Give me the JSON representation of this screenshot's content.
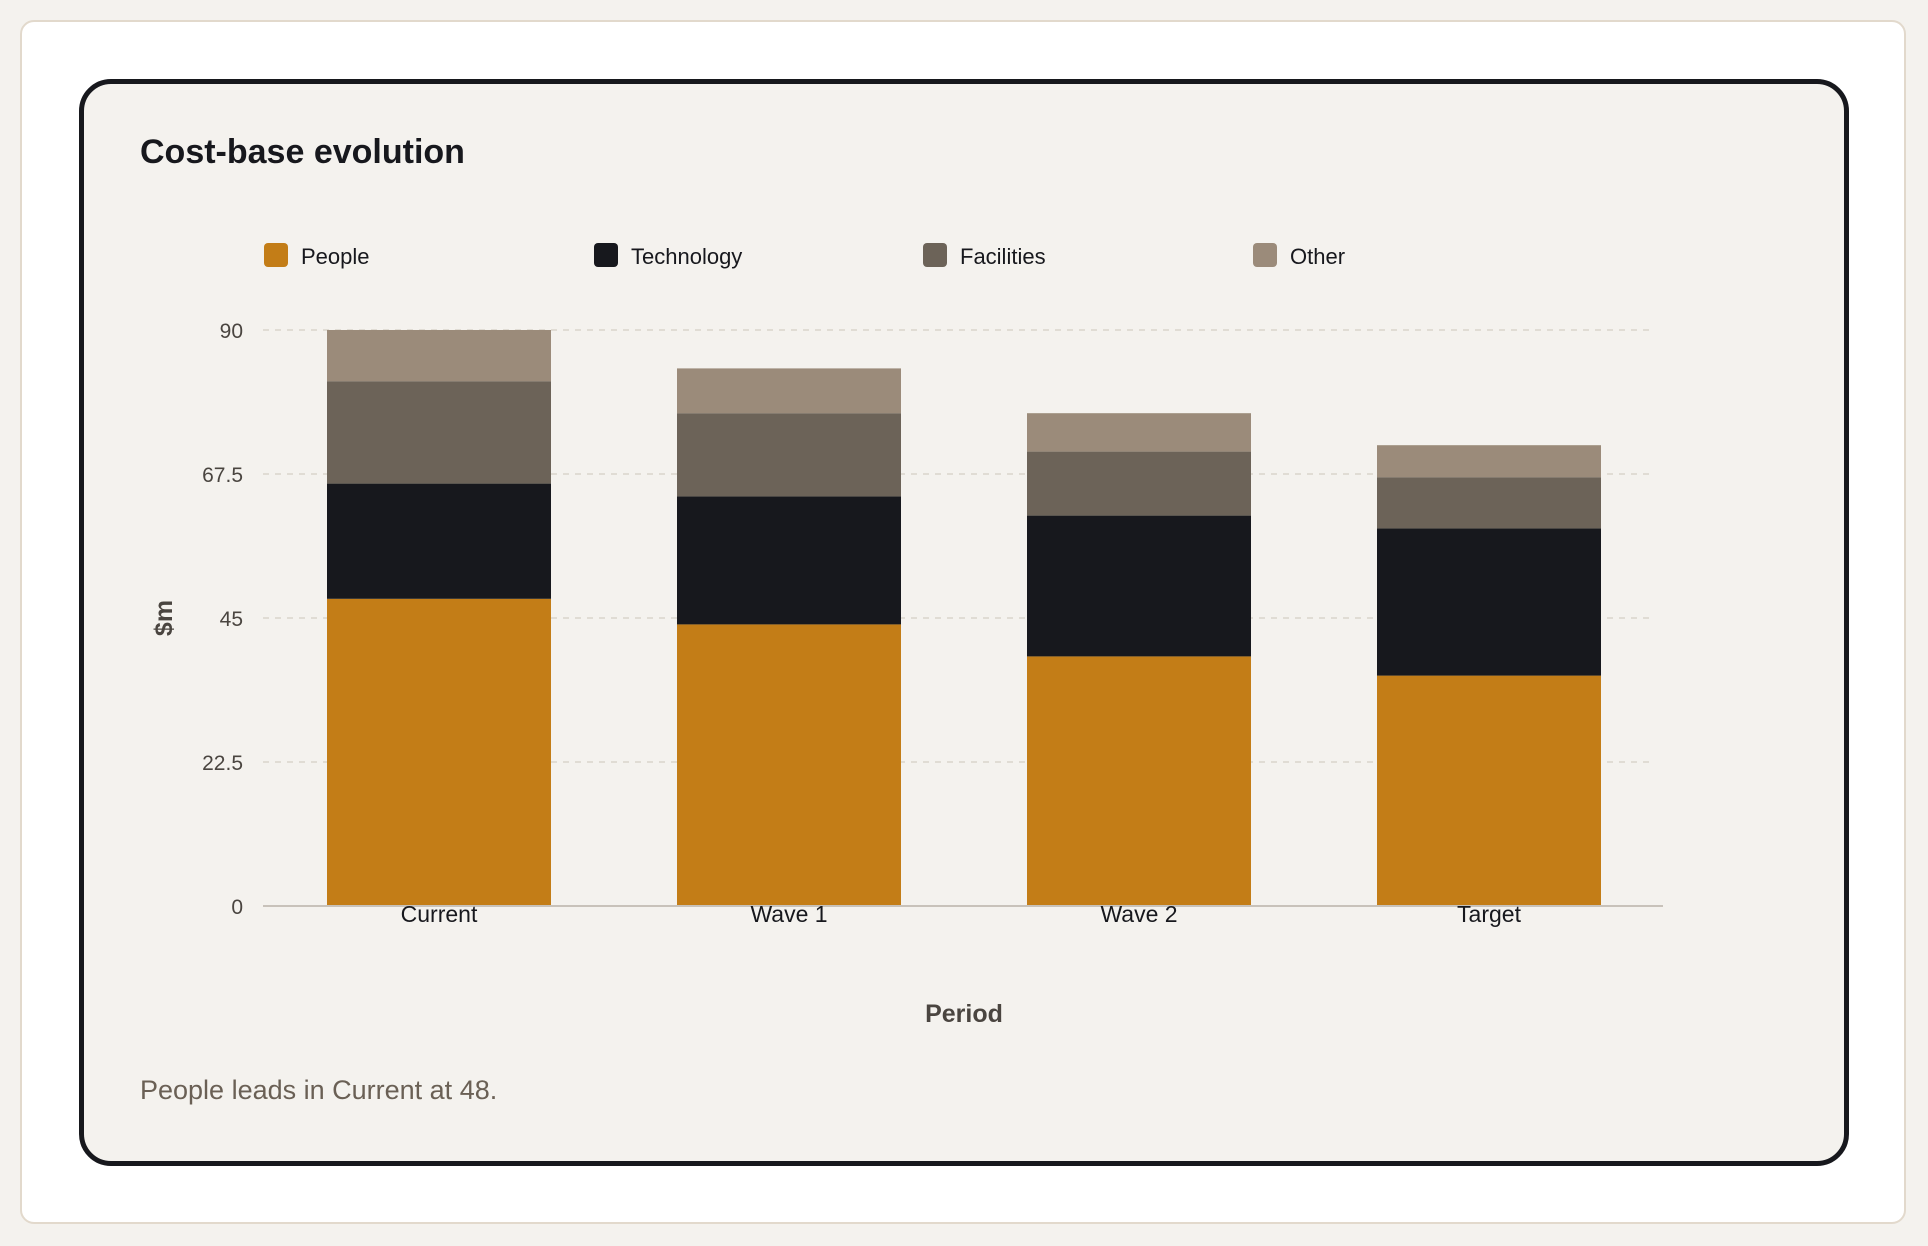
{
  "title": "Cost-base evolution",
  "caption": "People leads in Current at 48.",
  "colors": {
    "People": "#c37d17",
    "Technology": "#17181d",
    "Facilities": "#6c6358",
    "Other": "#9b8b7a",
    "grid": "#d9d4cc",
    "axis": "#c8c2ba",
    "card_border": "#17181d"
  },
  "chart_data": {
    "type": "bar",
    "stacked": true,
    "title": "Cost-base evolution",
    "xlabel": "Period",
    "ylabel": "$m",
    "ylim": [
      0,
      90
    ],
    "yticks": [
      "0",
      "22.5",
      "45",
      "67.5",
      "90"
    ],
    "grid": true,
    "legend_position": "top",
    "categories": [
      "Current",
      "Wave 1",
      "Wave 2",
      "Target"
    ],
    "series": [
      {
        "name": "People",
        "values": [
          48,
          44,
          39,
          36
        ]
      },
      {
        "name": "Technology",
        "values": [
          18,
          20,
          22,
          23
        ]
      },
      {
        "name": "Facilities",
        "values": [
          16,
          13,
          10,
          8
        ]
      },
      {
        "name": "Other",
        "values": [
          8,
          7,
          6,
          5
        ]
      }
    ]
  }
}
